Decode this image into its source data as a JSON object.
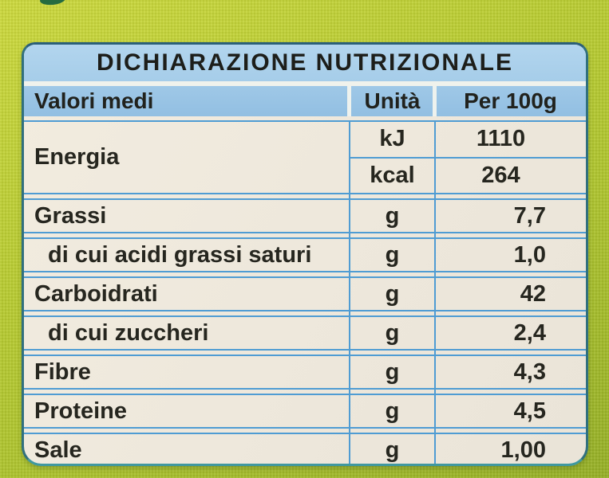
{
  "package": {
    "background_color": "#b8cb31",
    "graphic_fragment_color": "#256b40"
  },
  "label": {
    "title": "DICHIARAZIONE NUTRIZIONALE",
    "columns": {
      "values": "Valori medi",
      "unit": "Unità",
      "per100": "Per 100g"
    },
    "energy": {
      "label": "Energia",
      "entries": [
        {
          "unit": "kJ",
          "value": "1110"
        },
        {
          "unit": "kcal",
          "value": "264"
        }
      ]
    },
    "rows": [
      {
        "label": "Grassi",
        "unit": "g",
        "value": "7,7"
      },
      {
        "label": "di cui acidi grassi saturi",
        "unit": "g",
        "value": "1,0"
      },
      {
        "label": "Carboidrati",
        "unit": "g",
        "value": "42"
      },
      {
        "label": "di cui zuccheri",
        "unit": "g",
        "value": "2,4"
      },
      {
        "label": "Fibre",
        "unit": "g",
        "value": "4,3"
      },
      {
        "label": "Proteine",
        "unit": "g",
        "value": "4,5"
      },
      {
        "label": "Sale",
        "unit": "g",
        "value": "1,00"
      }
    ],
    "colors": {
      "title_band_blue": "#a9cfe9",
      "header_band_blue": "#95c1e3",
      "grid_line_blue": "#4f9cd3",
      "body_cream": "#efe9de",
      "border_teal": "#31707e",
      "text": "#26261f"
    }
  }
}
